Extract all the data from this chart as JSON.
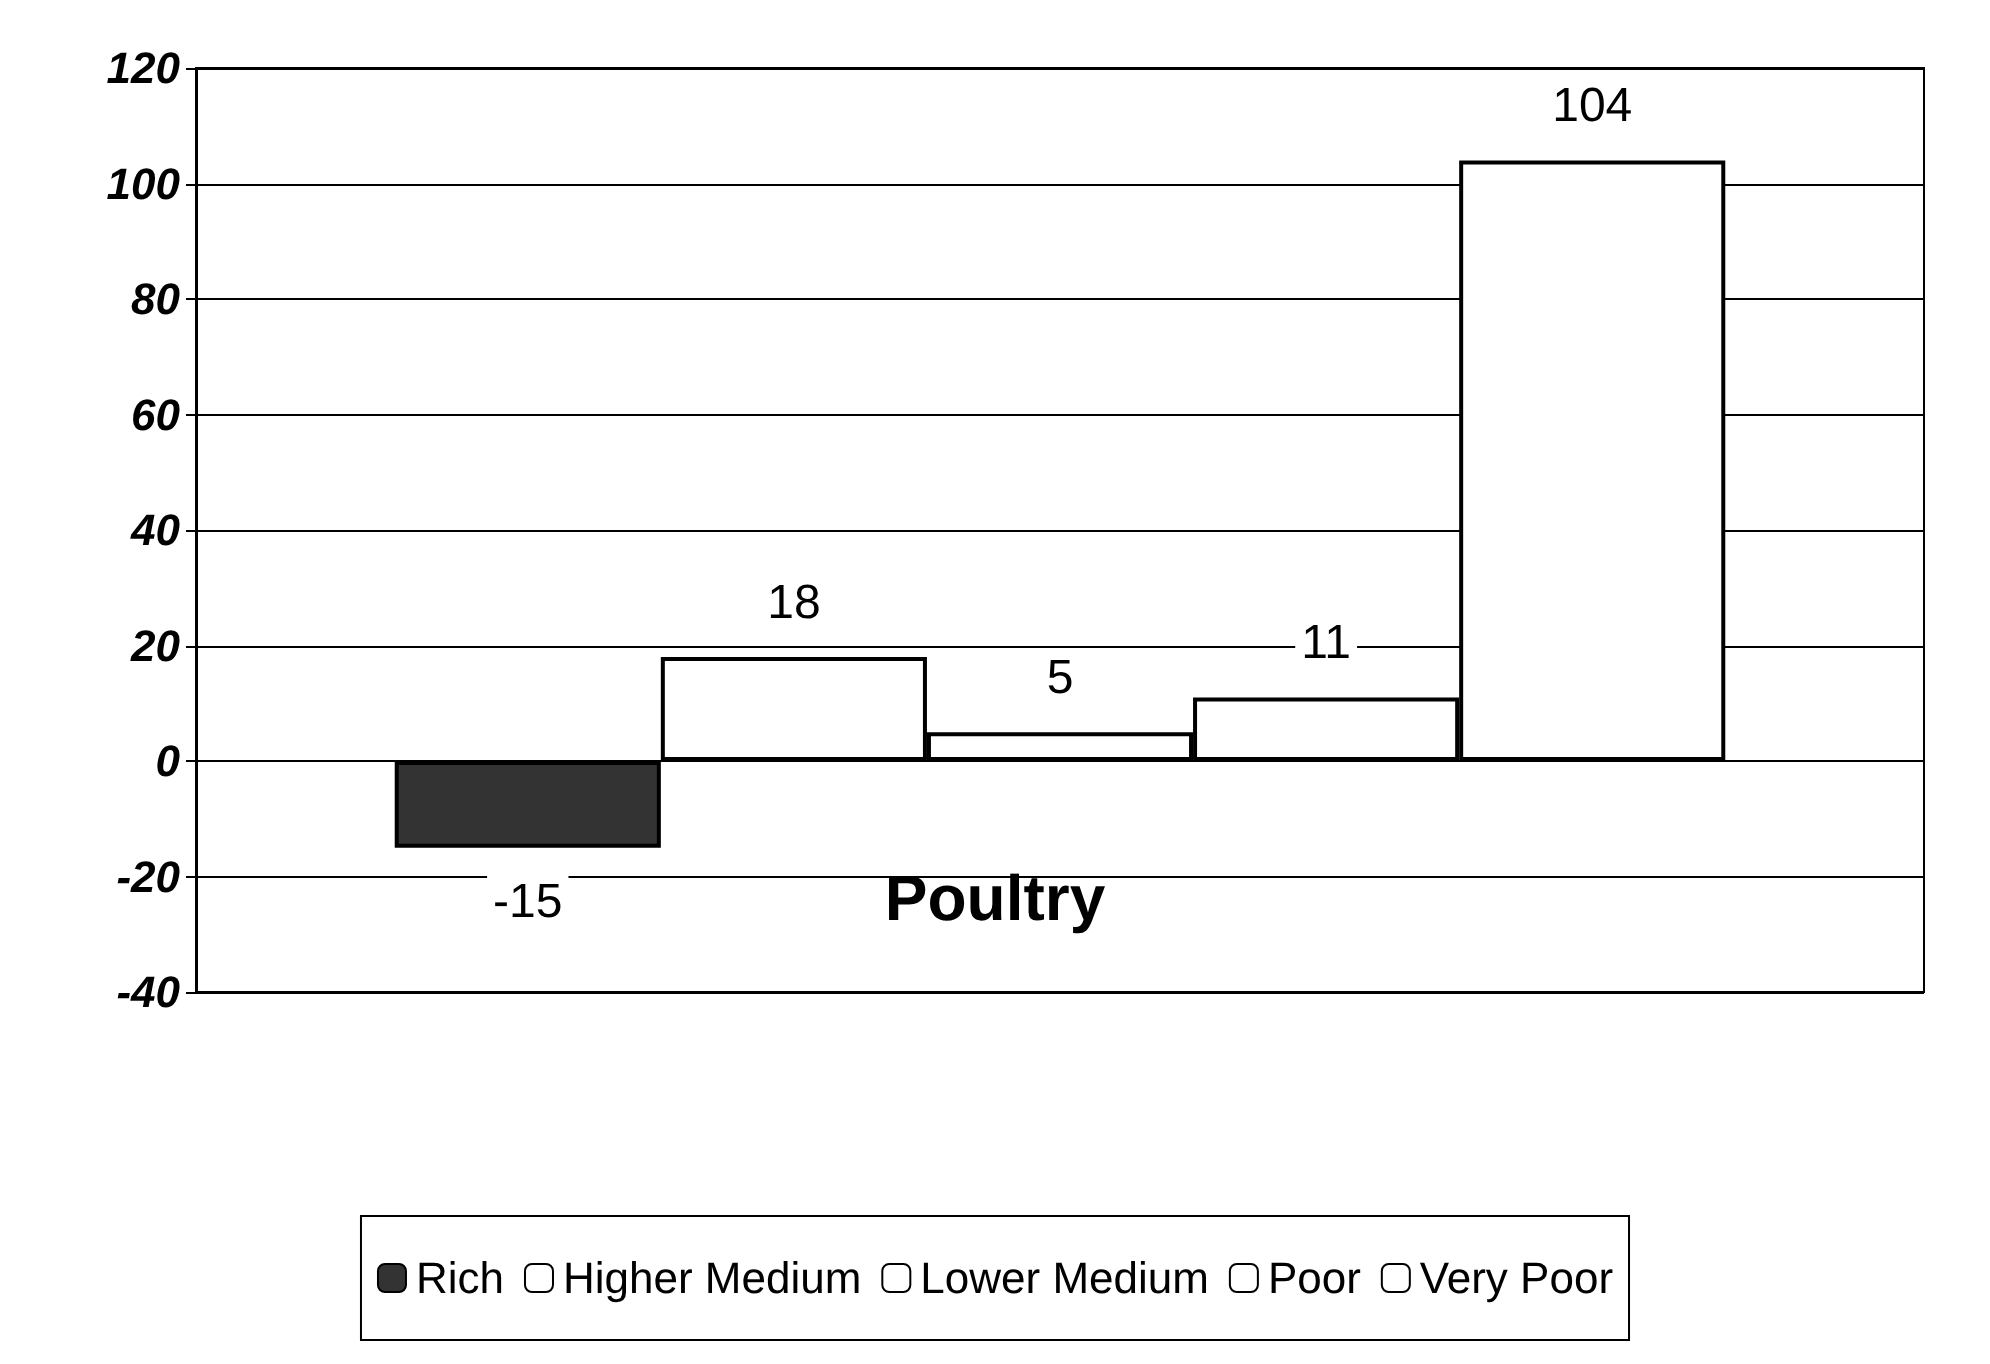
{
  "chart_data": {
    "type": "bar",
    "title": "Poultry",
    "categories": [
      null
    ],
    "series": [
      {
        "name": "Rich",
        "color": "#333333",
        "values": [
          -15
        ]
      },
      {
        "name": "Higher Medium",
        "color": "#ffffff",
        "values": [
          18
        ]
      },
      {
        "name": "Lower Medium",
        "color": "#ffffff",
        "values": [
          5
        ]
      },
      {
        "name": "Poor",
        "color": "#ffffff",
        "values": [
          11
        ]
      },
      {
        "name": "Very Poor",
        "color": "#ffffff",
        "values": [
          104
        ]
      }
    ],
    "ylim": [
      -40,
      120
    ],
    "yticks": [
      -40,
      -20,
      0,
      20,
      40,
      60,
      80,
      100,
      120
    ],
    "grid": "y",
    "legend": "bottom",
    "data_labels": true
  }
}
